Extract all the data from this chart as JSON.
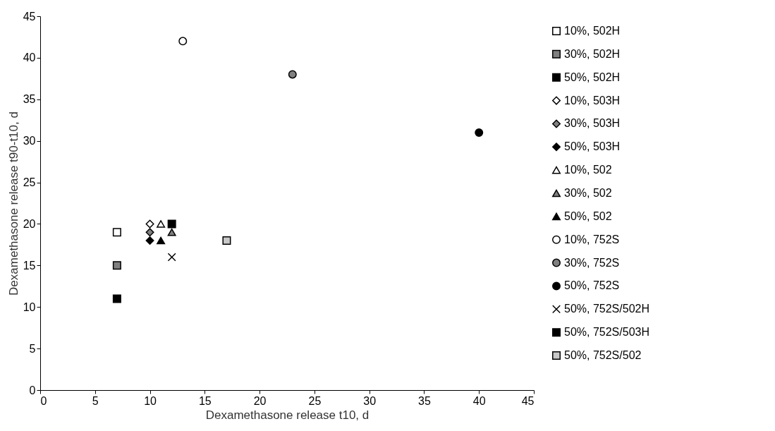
{
  "chart_data": {
    "type": "scatter",
    "xlabel": "Dexamethasone release t10, d",
    "ylabel": "Dexamethasone release t90-t10, d",
    "xlim": [
      0,
      45
    ],
    "ylim": [
      0,
      45
    ],
    "xticks": [
      0,
      5,
      10,
      15,
      20,
      25,
      30,
      35,
      40,
      45
    ],
    "yticks": [
      0,
      5,
      10,
      15,
      20,
      25,
      30,
      35,
      40,
      45
    ],
    "legend": "right",
    "series": [
      {
        "name": "10%, 502H",
        "color": "#ffffff",
        "marker": "square",
        "x": [
          7
        ],
        "values": [
          19
        ]
      },
      {
        "name": "30%, 502H",
        "color": "#808080",
        "marker": "square",
        "x": [
          7
        ],
        "values": [
          15
        ]
      },
      {
        "name": "50%, 502H",
        "color": "#000000",
        "marker": "square",
        "x": [
          7
        ],
        "values": [
          11
        ]
      },
      {
        "name": "10%, 503H",
        "color": "#ffffff",
        "marker": "diamond",
        "x": [
          10
        ],
        "values": [
          20
        ]
      },
      {
        "name": "30%, 503H",
        "color": "#808080",
        "marker": "diamond",
        "x": [
          10
        ],
        "values": [
          19
        ]
      },
      {
        "name": "50%, 503H",
        "color": "#000000",
        "marker": "diamond",
        "x": [
          10
        ],
        "values": [
          18
        ]
      },
      {
        "name": "10%, 502",
        "color": "#ffffff",
        "marker": "triangle",
        "x": [
          11
        ],
        "values": [
          20
        ]
      },
      {
        "name": "30%, 502",
        "color": "#808080",
        "marker": "triangle",
        "x": [
          12
        ],
        "values": [
          19
        ]
      },
      {
        "name": "50%, 502",
        "color": "#000000",
        "marker": "triangle",
        "x": [
          11
        ],
        "values": [
          18
        ]
      },
      {
        "name": "10%, 752S",
        "color": "#ffffff",
        "marker": "circle",
        "x": [
          13
        ],
        "values": [
          42
        ]
      },
      {
        "name": "30%, 752S",
        "color": "#808080",
        "marker": "circle",
        "x": [
          23
        ],
        "values": [
          38
        ]
      },
      {
        "name": "50%, 752S",
        "color": "#000000",
        "marker": "circle",
        "x": [
          40
        ],
        "values": [
          31
        ]
      },
      {
        "name": "50%, 752S/502H",
        "color": "#000000",
        "marker": "cross",
        "x": [
          12
        ],
        "values": [
          16
        ]
      },
      {
        "name": "50%, 752S/503H",
        "color": "#000000",
        "marker": "square",
        "x": [
          12
        ],
        "values": [
          20
        ]
      },
      {
        "name": "50%, 752S/502",
        "color": "#c8c8c8",
        "marker": "square",
        "x": [
          17
        ],
        "values": [
          18
        ]
      }
    ]
  }
}
